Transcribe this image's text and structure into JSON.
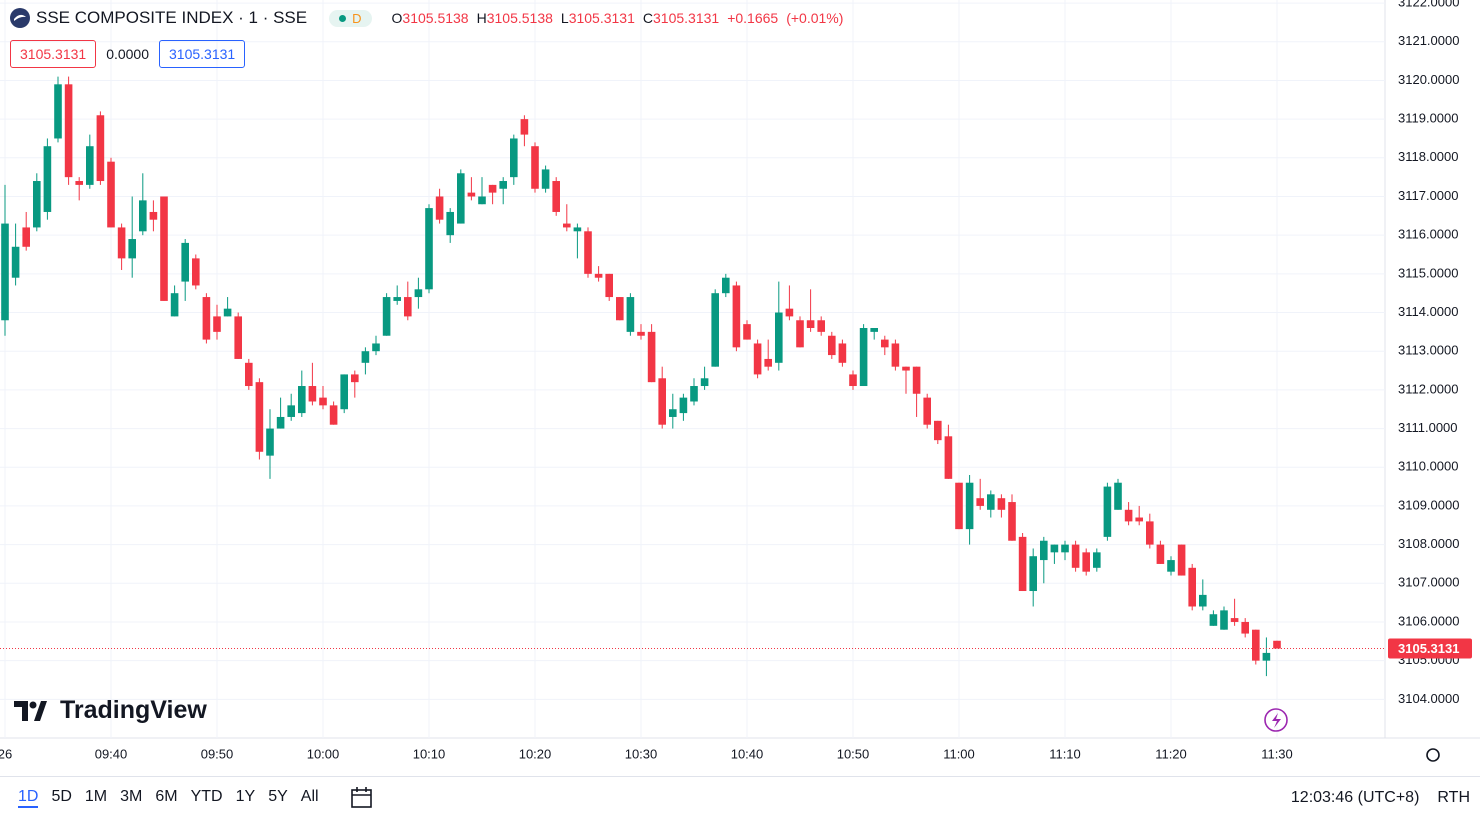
{
  "chart_data": {
    "type": "candlestick",
    "title": "SSE COMPOSITE INDEX · 1 · SSE",
    "interval_badge": "D",
    "ohlc_labels": [
      "O",
      "H",
      "L",
      "C"
    ],
    "change": "+0.1665",
    "change_pct": "(+0.01%)",
    "bid": "3105.3131",
    "spread": "0.0000",
    "ask": "3105.3131",
    "up_color": "#089981",
    "down_color": "#f23645",
    "grid": true,
    "x": [
      "09:30",
      "09:31",
      "09:32",
      "09:33",
      "09:34",
      "09:35",
      "09:36",
      "09:37",
      "09:38",
      "09:39",
      "09:40",
      "09:41",
      "09:42",
      "09:43",
      "09:44",
      "09:45",
      "09:46",
      "09:47",
      "09:48",
      "09:49",
      "09:50",
      "09:51",
      "09:52",
      "09:53",
      "09:54",
      "09:55",
      "09:56",
      "09:57",
      "09:58",
      "09:59",
      "10:00",
      "10:01",
      "10:02",
      "10:03",
      "10:04",
      "10:05",
      "10:06",
      "10:07",
      "10:08",
      "10:09",
      "10:10",
      "10:11",
      "10:12",
      "10:13",
      "10:14",
      "10:15",
      "10:16",
      "10:17",
      "10:18",
      "10:19",
      "10:20",
      "10:21",
      "10:22",
      "10:23",
      "10:24",
      "10:25",
      "10:26",
      "10:27",
      "10:28",
      "10:29",
      "10:30",
      "10:31",
      "10:32",
      "10:33",
      "10:34",
      "10:35",
      "10:36",
      "10:37",
      "10:38",
      "10:39",
      "10:40",
      "10:41",
      "10:42",
      "10:43",
      "10:44",
      "10:45",
      "10:46",
      "10:47",
      "10:48",
      "10:49",
      "10:50",
      "10:51",
      "10:52",
      "10:53",
      "10:54",
      "10:55",
      "10:56",
      "10:57",
      "10:58",
      "10:59",
      "11:00",
      "11:01",
      "11:02",
      "11:03",
      "11:04",
      "11:05",
      "11:06",
      "11:07",
      "11:08",
      "11:09",
      "11:10",
      "11:11",
      "11:12",
      "11:13",
      "11:14",
      "11:15",
      "11:16",
      "11:17",
      "11:18",
      "11:19",
      "11:20",
      "11:21",
      "11:22",
      "11:23",
      "11:24",
      "11:25",
      "11:26",
      "11:27",
      "11:28",
      "11:29",
      "11:30"
    ],
    "open": [
      3113.8,
      3114.9,
      3116.2,
      3116.2,
      3116.6,
      3118.5,
      3119.9,
      3117.4,
      3117.3,
      3119.1,
      3117.9,
      3116.2,
      3115.4,
      3116.1,
      3116.6,
      3117.0,
      3113.9,
      3114.8,
      3115.4,
      3114.4,
      3113.9,
      3113.9,
      3113.9,
      3112.7,
      3112.2,
      3110.3,
      3111.0,
      3111.3,
      3111.4,
      3112.1,
      3111.8,
      3111.6,
      3111.5,
      3112.4,
      3112.7,
      3113.0,
      3113.4,
      3114.3,
      3114.4,
      3114.4,
      3114.6,
      3117.0,
      3116.0,
      3116.3,
      3117.1,
      3116.8,
      3117.3,
      3117.2,
      3117.5,
      3119.0,
      3118.3,
      3117.2,
      3117.4,
      3116.3,
      3116.1,
      3116.1,
      3115.0,
      3115.0,
      3114.4,
      3113.5,
      3113.5,
      3113.5,
      3112.3,
      3111.3,
      3111.4,
      3111.7,
      3112.1,
      3112.6,
      3114.5,
      3114.7,
      3113.7,
      3113.2,
      3112.8,
      3112.7,
      3114.1,
      3113.8,
      3113.8,
      3113.8,
      3113.4,
      3113.2,
      3112.4,
      3112.1,
      3113.5,
      3113.3,
      3113.2,
      3112.6,
      3112.6,
      3111.8,
      3111.2,
      3110.8,
      3109.6,
      3108.4,
      3109.2,
      3108.9,
      3109.2,
      3109.1,
      3108.2,
      3106.8,
      3107.6,
      3107.8,
      3107.8,
      3108.0,
      3107.8,
      3107.4,
      3108.2,
      3108.9,
      3108.9,
      3108.7,
      3108.6,
      3108.0,
      3107.3,
      3108.0,
      3107.4,
      3106.4,
      3105.9,
      3105.8,
      3106.1,
      3106.0,
      3105.8,
      3105.0,
      3105.5138
    ],
    "high": [
      3117.3,
      3116.3,
      3116.6,
      3117.6,
      3118.5,
      3120.1,
      3120.1,
      3117.5,
      3118.6,
      3119.2,
      3118.0,
      3116.3,
      3117.0,
      3117.6,
      3116.9,
      3117.0,
      3114.7,
      3115.9,
      3115.5,
      3114.5,
      3114.2,
      3114.4,
      3114.0,
      3112.8,
      3112.3,
      3111.5,
      3111.8,
      3111.9,
      3112.5,
      3112.7,
      3112.1,
      3111.7,
      3112.4,
      3112.5,
      3113.1,
      3113.4,
      3114.5,
      3114.7,
      3114.8,
      3114.9,
      3116.8,
      3117.2,
      3116.7,
      3117.7,
      3117.5,
      3117.5,
      3117.3,
      3117.5,
      3118.6,
      3119.1,
      3118.4,
      3117.8,
      3117.5,
      3116.8,
      3116.3,
      3116.2,
      3115.2,
      3115.0,
      3114.4,
      3114.5,
      3113.7,
      3113.7,
      3112.6,
      3111.9,
      3111.9,
      3112.3,
      3112.6,
      3114.6,
      3115.0,
      3114.8,
      3113.8,
      3113.3,
      3113.3,
      3114.8,
      3114.7,
      3113.9,
      3114.6,
      3113.9,
      3113.5,
      3113.3,
      3112.5,
      3113.7,
      3113.6,
      3113.4,
      3113.3,
      3112.6,
      3112.6,
      3111.9,
      3111.2,
      3111.1,
      3109.6,
      3109.8,
      3109.7,
      3109.4,
      3109.3,
      3109.3,
      3108.3,
      3107.9,
      3108.2,
      3108.0,
      3108.1,
      3108.1,
      3107.9,
      3107.9,
      3109.6,
      3109.7,
      3109.1,
      3109.0,
      3108.8,
      3108.1,
      3107.7,
      3108.0,
      3107.5,
      3107.1,
      3106.3,
      3106.4,
      3106.6,
      3106.1,
      3105.8,
      3105.6,
      3105.5138
    ],
    "low": [
      3113.4,
      3114.7,
      3115.6,
      3116.1,
      3116.4,
      3118.4,
      3117.3,
      3116.9,
      3117.2,
      3117.3,
      3116.2,
      3115.1,
      3114.9,
      3116.0,
      3116.1,
      3114.3,
      3113.9,
      3114.3,
      3114.6,
      3113.2,
      3113.3,
      3113.9,
      3112.8,
      3112.0,
      3110.2,
      3109.7,
      3111.0,
      3111.2,
      3111.3,
      3111.6,
      3111.5,
      3111.1,
      3111.4,
      3111.8,
      3112.4,
      3112.9,
      3113.4,
      3114.2,
      3113.8,
      3114.1,
      3114.5,
      3116.3,
      3115.8,
      3116.3,
      3116.9,
      3116.8,
      3116.8,
      3116.8,
      3117.3,
      3118.3,
      3117.1,
      3117.1,
      3116.5,
      3116.1,
      3115.4,
      3114.9,
      3114.8,
      3114.3,
      3113.8,
      3113.4,
      3113.3,
      3112.2,
      3111.0,
      3111.0,
      3111.2,
      3111.6,
      3112.0,
      3112.6,
      3114.4,
      3113.0,
      3113.3,
      3112.3,
      3112.5,
      3112.5,
      3113.8,
      3113.1,
      3113.5,
      3113.4,
      3112.8,
      3112.6,
      3112.0,
      3112.1,
      3113.3,
      3112.9,
      3112.5,
      3111.9,
      3111.3,
      3111.0,
      3110.6,
      3109.7,
      3108.4,
      3108.0,
      3108.9,
      3108.7,
      3108.7,
      3108.1,
      3106.8,
      3106.4,
      3107.0,
      3107.5,
      3107.6,
      3107.3,
      3107.2,
      3107.3,
      3108.1,
      3108.9,
      3108.5,
      3108.5,
      3107.9,
      3107.5,
      3107.2,
      3107.2,
      3106.3,
      3106.3,
      3105.9,
      3105.8,
      3105.9,
      3105.6,
      3104.9,
      3104.6,
      3105.3131
    ],
    "close": [
      3116.3,
      3115.7,
      3115.7,
      3117.4,
      3118.3,
      3119.9,
      3117.5,
      3117.3,
      3118.3,
      3117.4,
      3116.2,
      3115.4,
      3115.9,
      3116.9,
      3116.4,
      3114.3,
      3114.5,
      3115.8,
      3114.7,
      3113.3,
      3113.5,
      3114.1,
      3112.8,
      3112.1,
      3110.4,
      3111.0,
      3111.3,
      3111.6,
      3112.1,
      3111.7,
      3111.6,
      3111.1,
      3112.4,
      3112.2,
      3113.0,
      3113.2,
      3114.4,
      3114.4,
      3113.9,
      3114.6,
      3116.7,
      3116.4,
      3116.6,
      3117.6,
      3117.0,
      3117.0,
      3117.1,
      3117.4,
      3118.5,
      3118.6,
      3117.2,
      3117.7,
      3116.6,
      3116.2,
      3116.2,
      3115.0,
      3114.9,
      3114.4,
      3113.8,
      3114.4,
      3113.4,
      3112.2,
      3111.1,
      3111.5,
      3111.8,
      3112.1,
      3112.3,
      3114.5,
      3114.9,
      3113.1,
      3113.3,
      3112.4,
      3112.6,
      3114.0,
      3113.9,
      3113.1,
      3113.6,
      3113.5,
      3112.9,
      3112.7,
      3112.1,
      3113.6,
      3113.6,
      3113.1,
      3112.6,
      3112.5,
      3111.9,
      3111.1,
      3110.7,
      3109.7,
      3108.4,
      3109.6,
      3109.0,
      3109.3,
      3108.9,
      3108.1,
      3106.8,
      3107.7,
      3108.1,
      3108.0,
      3108.0,
      3107.4,
      3107.3,
      3107.8,
      3109.5,
      3109.6,
      3108.6,
      3108.6,
      3108.0,
      3107.5,
      3107.6,
      3107.2,
      3106.4,
      3106.7,
      3106.2,
      3106.3,
      3106.0,
      3105.7,
      3105.0,
      3105.2,
      3105.3131
    ],
    "ylim": [
      3103,
      3122.08
    ],
    "yticks": [
      {
        "value": 3104,
        "label": "3104.0000"
      },
      {
        "value": 3105,
        "label": "3105.0000"
      },
      {
        "value": 3106,
        "label": "3106.0000"
      },
      {
        "value": 3107,
        "label": "3107.0000"
      },
      {
        "value": 3108,
        "label": "3108.0000"
      },
      {
        "value": 3109,
        "label": "3109.0000"
      },
      {
        "value": 3110,
        "label": "3110.0000"
      },
      {
        "value": 3111,
        "label": "3111.0000"
      },
      {
        "value": 3112,
        "label": "3112.0000"
      },
      {
        "value": 3113,
        "label": "3113.0000"
      },
      {
        "value": 3114,
        "label": "3114.0000"
      },
      {
        "value": 3115,
        "label": "3115.0000"
      },
      {
        "value": 3116,
        "label": "3116.0000"
      },
      {
        "value": 3117,
        "label": "3117.0000"
      },
      {
        "value": 3118,
        "label": "3118.0000"
      },
      {
        "value": 3119,
        "label": "3119.0000"
      },
      {
        "value": 3120,
        "label": "3120.0000"
      },
      {
        "value": 3121,
        "label": "3121.0000"
      },
      {
        "value": 3122,
        "label": "3122.0000"
      }
    ],
    "xticks": [
      {
        "value": "09:30",
        "label": "26"
      },
      "09:40",
      "09:50",
      "10:00",
      "10:10",
      "10:20",
      "10:30",
      "10:40",
      "10:50",
      "11:00",
      "11:10",
      "11:20",
      "11:30"
    ]
  },
  "toolbar": {
    "ranges": [
      "1D",
      "5D",
      "1M",
      "3M",
      "6M",
      "YTD",
      "1Y",
      "5Y",
      "All"
    ],
    "clock": "12:03:46 (UTC+8)",
    "session": "RTH"
  },
  "logo": "TradingView"
}
